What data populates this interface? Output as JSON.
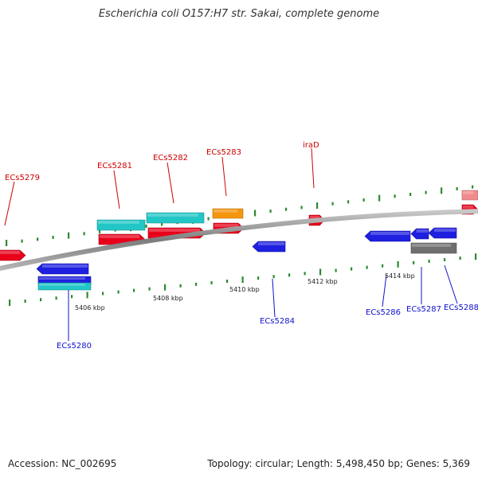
{
  "title": "Escherichia coli O157:H7 str. Sakai, complete genome",
  "footer": {
    "accession": "Accession: NC_002695",
    "topology": "Topology: circular; Length: 5,498,450 bp; Genes: 5,369"
  },
  "colors": {
    "backbone": "#8a8a8a",
    "tick": "#2e8b2e",
    "forward_gene": "#e8001a",
    "reverse_gene": "#1f1fe0",
    "cyan_feature": "#22c6c6",
    "orange_feature": "#f5960f",
    "gray_feature": "#6f6f6f",
    "pink_feature": "#f08c8c",
    "forward_label": "#cc0000",
    "reverse_label": "#1010cc"
  },
  "scale_labels": [
    {
      "text": "5406 kbp"
    },
    {
      "text": "5408 kbp"
    },
    {
      "text": "5410 kbp"
    },
    {
      "text": "5412 kbp"
    },
    {
      "text": "5414 kbp"
    }
  ],
  "gene_labels_forward": [
    {
      "text": "ECs5279"
    },
    {
      "text": "ECs5281"
    },
    {
      "text": "ECs5282"
    },
    {
      "text": "ECs5283"
    },
    {
      "text": "iraD"
    }
  ],
  "gene_labels_reverse": [
    {
      "text": "ECs5280"
    },
    {
      "text": "ECs5284"
    },
    {
      "text": "ECs5286"
    },
    {
      "text": "ECs5287"
    },
    {
      "text": "ECs5288"
    }
  ]
}
